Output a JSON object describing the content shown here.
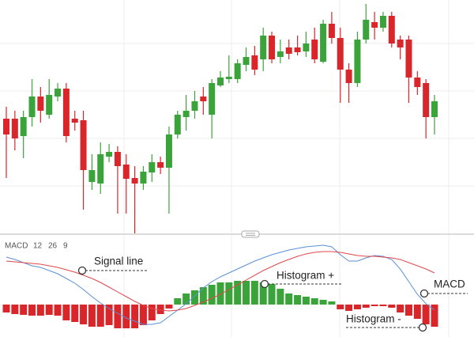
{
  "chart_data": [
    {
      "type": "candlestick",
      "ylim": [
        5,
        300
      ],
      "up_color": "#3aa43a",
      "down_color": "#d9262b",
      "open": [
        150,
        150,
        128,
        152,
        178,
        155,
        178,
        188,
        150,
        148,
        70,
        68,
        102,
        108,
        92,
        75,
        68,
        82,
        95,
        88,
        130,
        152,
        160,
        178,
        155,
        192,
        200,
        200,
        218,
        230,
        225,
        255,
        228,
        240,
        240,
        235,
        250,
        222,
        270,
        252,
        212,
        195,
        250,
        272,
        265,
        280,
        250,
        250,
        202,
        195,
        152
      ],
      "high": [
        165,
        160,
        160,
        200,
        190,
        200,
        195,
        195,
        160,
        160,
        105,
        120,
        118,
        115,
        105,
        90,
        90,
        105,
        102,
        140,
        160,
        180,
        185,
        190,
        200,
        210,
        230,
        225,
        240,
        242,
        265,
        260,
        250,
        250,
        255,
        260,
        265,
        275,
        285,
        265,
        220,
        260,
        295,
        285,
        285,
        285,
        255,
        255,
        210,
        200,
        180
      ],
      "low": [
        75,
        110,
        100,
        140,
        145,
        150,
        172,
        120,
        135,
        35,
        60,
        55,
        95,
        30,
        30,
        5,
        60,
        70,
        80,
        30,
        125,
        135,
        150,
        155,
        125,
        190,
        195,
        195,
        210,
        205,
        210,
        220,
        220,
        225,
        230,
        228,
        220,
        220,
        245,
        170,
        170,
        190,
        245,
        250,
        260,
        240,
        225,
        170,
        180,
        125,
        130
      ],
      "close": [
        130,
        125,
        152,
        178,
        160,
        180,
        188,
        128,
        145,
        85,
        85,
        105,
        108,
        90,
        74,
        68,
        83,
        95,
        88,
        130,
        155,
        160,
        172,
        172,
        195,
        202,
        203,
        220,
        228,
        212,
        255,
        225,
        235,
        232,
        234,
        245,
        225,
        270,
        252,
        212,
        195,
        250,
        275,
        265,
        280,
        245,
        240,
        202,
        190,
        152,
        172
      ]
    },
    {
      "type": "macd",
      "indicator_label": "MACD",
      "parameters": [
        12,
        26,
        9
      ],
      "ylim": [
        -41,
        85
      ],
      "series": [
        {
          "color": "#5b8fd6",
          "values": [
            60,
            57,
            53,
            49,
            47,
            43,
            39,
            33,
            27,
            19,
            10,
            2,
            -5,
            -11,
            -17,
            -21,
            -25,
            -25,
            -23,
            -15,
            -7,
            1,
            11,
            21,
            29,
            35,
            40,
            45,
            50,
            55,
            59,
            63,
            66,
            69,
            71,
            73,
            74,
            75,
            73,
            63,
            55,
            55,
            59,
            62,
            61,
            57,
            45,
            29,
            13,
            1,
            -7
          ]
        },
        {
          "color": "#e0474c",
          "values": [
            55,
            54,
            53,
            52,
            51,
            49,
            47,
            44,
            41,
            37,
            33,
            28,
            22,
            16,
            10,
            4,
            -1,
            -5,
            -7,
            -8,
            -7,
            -5,
            -1,
            3,
            8,
            13,
            19,
            25,
            31,
            37,
            43,
            48,
            53,
            57,
            61,
            64,
            66,
            67,
            67,
            66,
            64,
            62,
            61,
            61,
            60,
            59,
            57,
            53,
            49,
            45,
            40
          ]
        }
      ],
      "histogram": {
        "up_color": "#3aa43a",
        "down_color": "#d9262b",
        "values": [
          -10,
          -12,
          -13,
          -14,
          -14,
          -13,
          -14,
          -20,
          -22,
          -25,
          -28,
          -28,
          -26,
          -30,
          -30,
          -30,
          -26,
          -20,
          -12,
          -5,
          8,
          14,
          18,
          22,
          25,
          28,
          28,
          30,
          30,
          30,
          28,
          26,
          20,
          14,
          12,
          10,
          8,
          6,
          4,
          -6,
          -8,
          -6,
          -4,
          -2,
          -2,
          -4,
          -10,
          -14,
          -18,
          -25,
          -28
        ]
      },
      "annotations": [
        "Signal line",
        "Histogram +",
        "MACD",
        "Histogram -"
      ]
    }
  ]
}
